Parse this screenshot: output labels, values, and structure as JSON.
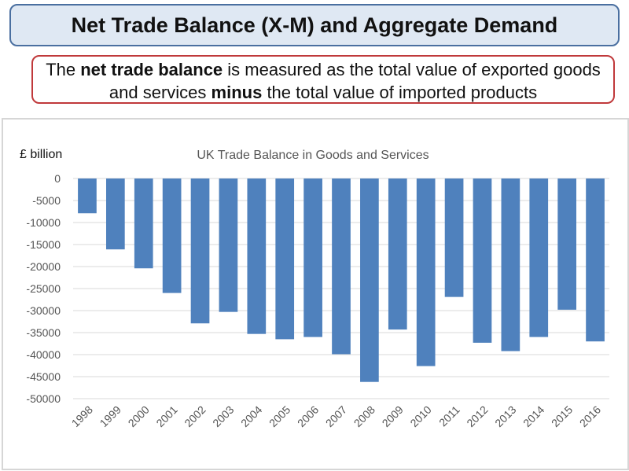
{
  "header": {
    "title": "Net Trade Balance (X-M) and Aggregate Demand"
  },
  "definition": {
    "part1": "The ",
    "bold1": "net trade balance",
    "part2": " is measured as the total value of exported goods and services ",
    "bold2": "minus",
    "part3": " the total value of imported products"
  },
  "chart_data": {
    "type": "bar",
    "title": "UK Trade Balance in Goods and Services",
    "ylabel": "£ billion",
    "xlabel": "",
    "ylim": [
      -50000,
      0
    ],
    "yticks": [
      "0",
      "-5000",
      "-10000",
      "-15000",
      "-20000",
      "-25000",
      "-30000",
      "-35000",
      "-40000",
      "-45000",
      "-50000"
    ],
    "grid": true,
    "color": "#4f81bd",
    "categories": [
      "1998",
      "1999",
      "2000",
      "2001",
      "2002",
      "2003",
      "2004",
      "2005",
      "2006",
      "2007",
      "2008",
      "2009",
      "2010",
      "2011",
      "2012",
      "2013",
      "2014",
      "2015",
      "2016"
    ],
    "values": [
      -7900,
      -16100,
      -20400,
      -26000,
      -32900,
      -30300,
      -35300,
      -36500,
      -36000,
      -39900,
      -46200,
      -34300,
      -42600,
      -26900,
      -37300,
      -39200,
      -36000,
      -29800,
      -37000
    ]
  }
}
